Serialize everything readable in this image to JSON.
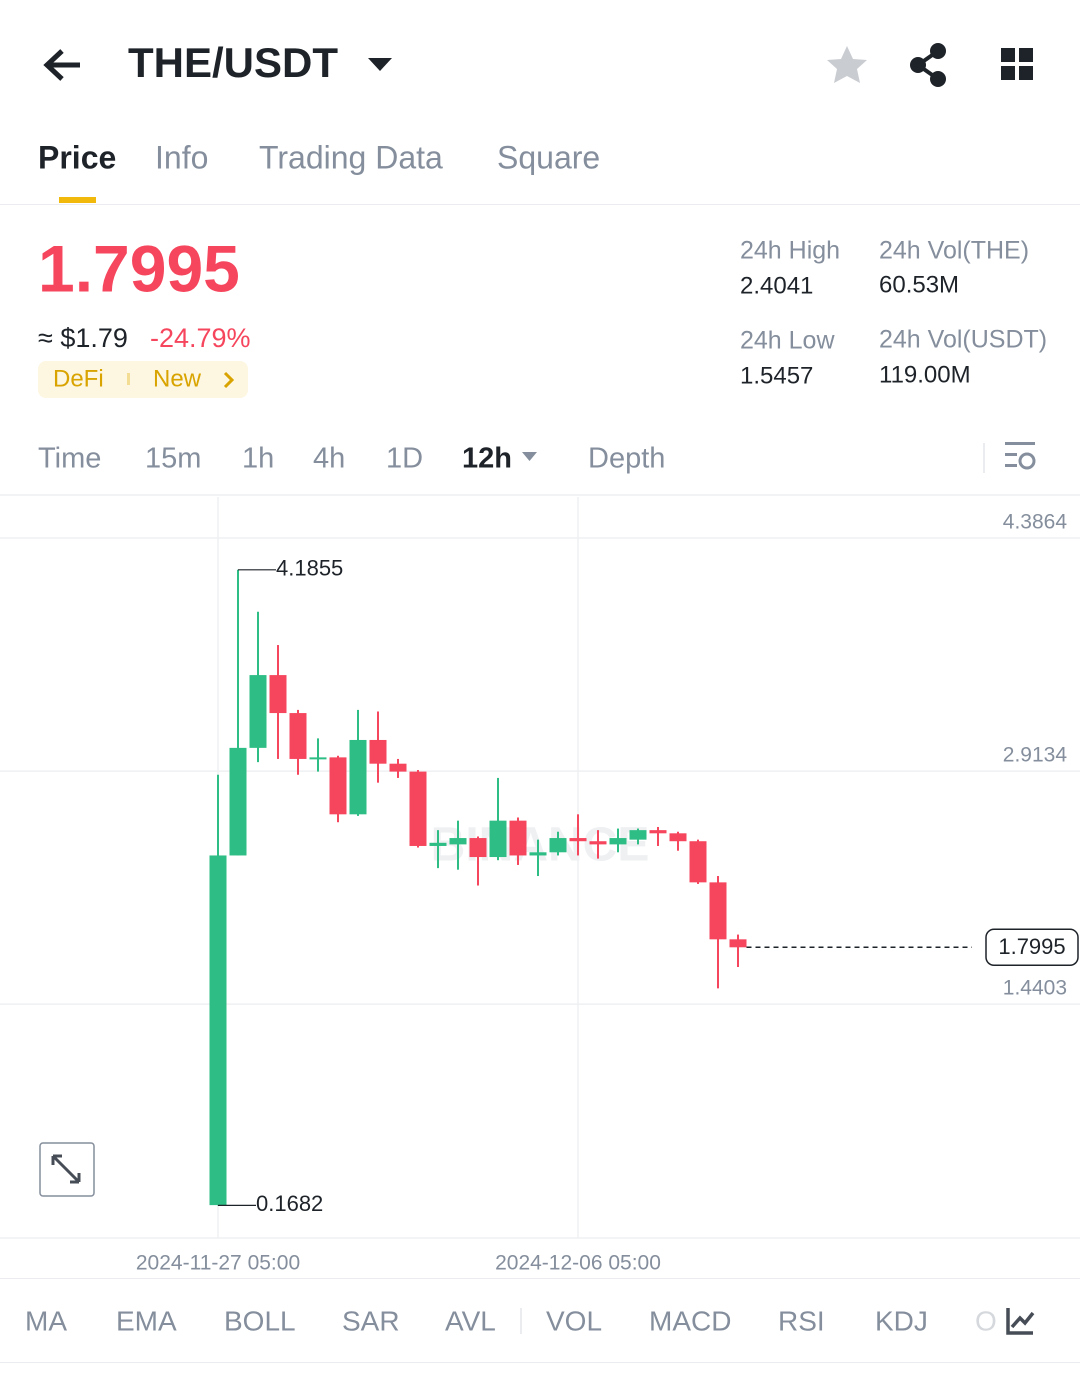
{
  "header": {
    "pair": "THE/USDT"
  },
  "tabs": [
    "Price",
    "Info",
    "Trading Data",
    "Square"
  ],
  "price": {
    "last": "1.7995",
    "approx": "≈ $1.79",
    "change": "-24.79%",
    "tags": [
      "DeFi",
      "New"
    ]
  },
  "stats": [
    {
      "label": "24h High",
      "value": "2.4041"
    },
    {
      "label": "24h Vol(THE)",
      "value": "60.53M"
    },
    {
      "label": "24h Low",
      "value": "1.5457"
    },
    {
      "label": "24h Vol(USDT)",
      "value": "119.00M"
    }
  ],
  "intervals": [
    "Time",
    "15m",
    "1h",
    "4h",
    "1D",
    "12h",
    "Depth"
  ],
  "indicators": [
    "MA",
    "EMA",
    "BOLL",
    "SAR",
    "AVL",
    "VOL",
    "MACD",
    "RSI",
    "KDJ",
    "O"
  ],
  "chart_data": {
    "type": "candlestick",
    "watermark": "BINANCE",
    "categories": [
      "2024-11-27 05:00",
      null,
      null,
      null,
      null,
      null,
      null,
      null,
      null,
      null,
      null,
      null,
      null,
      null,
      null,
      null,
      null,
      null,
      "2024-12-06 05:00",
      null,
      null,
      null,
      null,
      null,
      null,
      null,
      null
    ],
    "open": [
      0.17,
      2.38,
      3.06,
      3.52,
      3.28,
      2.99,
      3.0,
      2.64,
      3.11,
      2.96,
      2.91,
      2.44,
      2.45,
      2.49,
      2.37,
      2.6,
      2.38,
      2.4,
      2.49,
      2.47,
      2.45,
      2.48,
      2.54,
      2.52,
      2.47,
      2.21,
      1.85
    ],
    "high": [
      2.89,
      4.1855,
      3.92,
      3.71,
      3.3,
      3.12,
      3.01,
      3.3,
      3.29,
      2.99,
      2.92,
      2.54,
      2.6,
      2.5,
      2.87,
      2.62,
      2.48,
      2.53,
      2.64,
      2.54,
      2.55,
      2.55,
      2.56,
      2.53,
      2.48,
      2.25,
      1.88
    ],
    "low": [
      0.1682,
      2.38,
      2.97,
      2.99,
      2.89,
      2.91,
      2.59,
      2.63,
      2.84,
      2.87,
      2.43,
      2.3,
      2.29,
      2.19,
      2.35,
      2.32,
      2.25,
      2.38,
      2.38,
      2.36,
      2.4,
      2.45,
      2.44,
      2.41,
      2.2,
      1.54,
      1.675
    ],
    "close": [
      2.38,
      3.06,
      3.52,
      3.28,
      2.99,
      3.0,
      2.64,
      3.11,
      2.96,
      2.91,
      2.44,
      2.46,
      2.49,
      2.37,
      2.6,
      2.38,
      2.4,
      2.49,
      2.47,
      2.45,
      2.49,
      2.54,
      2.52,
      2.47,
      2.21,
      1.85,
      1.7995
    ],
    "up_color": "#2ebd85",
    "down_color": "#f6465d",
    "ylim": [
      -0.0378,
      4.6456
    ],
    "yticks": [
      4.3864,
      2.9134,
      1.4403
    ],
    "grid": true,
    "annotations": {
      "max": 4.1855,
      "min": 0.1682,
      "last": 1.7995
    }
  }
}
